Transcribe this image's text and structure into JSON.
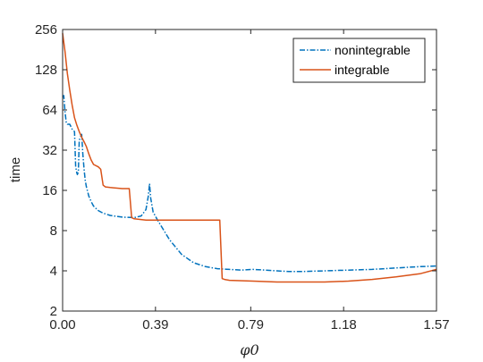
{
  "chart_data": {
    "type": "line",
    "title": "",
    "xlabel": "φ0",
    "ylabel": "time",
    "xlim": [
      0,
      1.57
    ],
    "ylim": [
      2,
      256
    ],
    "yscale": "log2",
    "xticks": [
      0.0,
      0.39,
      0.79,
      1.18,
      1.57
    ],
    "xtick_labels": [
      "0.00",
      "0.39",
      "0.79",
      "1.18",
      "1.57"
    ],
    "yticks": [
      2,
      4,
      8,
      16,
      32,
      64,
      128,
      256
    ],
    "ytick_labels": [
      "2",
      "4",
      "8",
      "16",
      "32",
      "64",
      "128",
      "256"
    ],
    "grid": false,
    "legend_position": "top-right",
    "series": [
      {
        "name": "nonintegrable",
        "color": "#0072BD",
        "style": "dashdot",
        "x": [
          0.0,
          0.005,
          0.01,
          0.015,
          0.02,
          0.03,
          0.04,
          0.05,
          0.055,
          0.06,
          0.062,
          0.066,
          0.07,
          0.075,
          0.08,
          0.085,
          0.09,
          0.095,
          0.1,
          0.11,
          0.12,
          0.13,
          0.15,
          0.17,
          0.2,
          0.25,
          0.3,
          0.33,
          0.35,
          0.36,
          0.365,
          0.37,
          0.38,
          0.4,
          0.45,
          0.5,
          0.55,
          0.6,
          0.65,
          0.7,
          0.75,
          0.8,
          0.85,
          0.9,
          0.95,
          1.0,
          1.1,
          1.2,
          1.3,
          1.4,
          1.5,
          1.57
        ],
        "y": [
          80,
          82,
          62,
          52,
          50,
          50,
          46,
          44,
          24,
          21.5,
          21,
          22,
          38,
          40,
          42,
          30,
          23,
          19,
          17,
          14.5,
          13.2,
          12.2,
          11.3,
          10.8,
          10.4,
          10.1,
          10.0,
          10.3,
          11.5,
          14.5,
          18,
          14,
          11,
          9.5,
          6.8,
          5.3,
          4.6,
          4.3,
          4.15,
          4.1,
          4.05,
          4.1,
          4.05,
          4.0,
          3.95,
          3.95,
          4.0,
          4.05,
          4.1,
          4.2,
          4.3,
          4.35
        ]
      },
      {
        "name": "integrable",
        "color": "#D95319",
        "style": "solid",
        "x": [
          0.0,
          0.01,
          0.02,
          0.03,
          0.04,
          0.05,
          0.06,
          0.07,
          0.08,
          0.09,
          0.1,
          0.11,
          0.12,
          0.13,
          0.15,
          0.16,
          0.17,
          0.18,
          0.2,
          0.25,
          0.26,
          0.27,
          0.28,
          0.29,
          0.3,
          0.35,
          0.45,
          0.55,
          0.66,
          0.67,
          0.68,
          0.7,
          0.8,
          0.9,
          1.0,
          1.1,
          1.2,
          1.3,
          1.4,
          1.5,
          1.57
        ],
        "y": [
          240,
          175,
          120,
          90,
          70,
          56,
          49,
          44,
          40,
          37,
          34,
          30,
          27,
          25,
          24,
          23,
          17.5,
          17,
          16.8,
          16.5,
          16.5,
          16.5,
          16.5,
          10.0,
          9.8,
          9.6,
          9.6,
          9.6,
          9.6,
          3.5,
          3.45,
          3.4,
          3.35,
          3.3,
          3.3,
          3.3,
          3.35,
          3.45,
          3.6,
          3.8,
          4.1
        ]
      }
    ]
  }
}
